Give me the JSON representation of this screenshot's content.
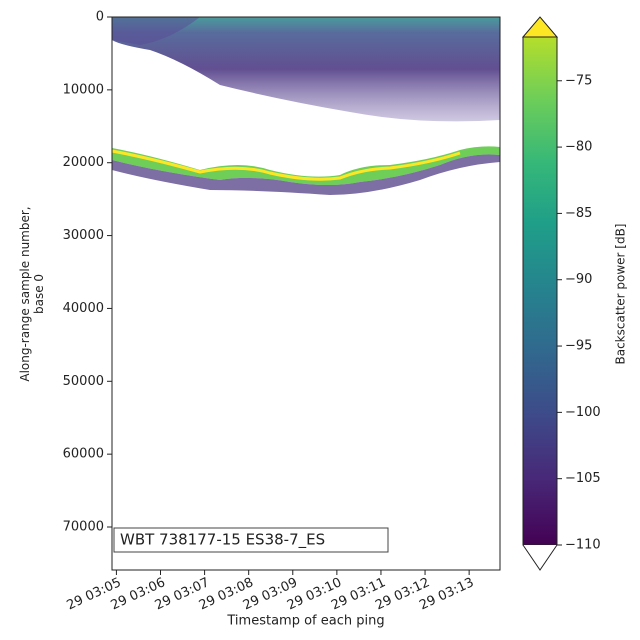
{
  "chart_data": {
    "type": "heatmap",
    "annotation": "WBT 738177-15 ES38-7_ES",
    "xlabel": "Timestamp of each ping",
    "ylabel": "Along-range sample number,\nbase 0",
    "xlim": [
      4.9,
      13.7
    ],
    "xticks": [
      {
        "value": 5,
        "label": "29 03:05"
      },
      {
        "value": 6,
        "label": "29 03:06"
      },
      {
        "value": 7,
        "label": "29 03:07"
      },
      {
        "value": 8,
        "label": "29 03:08"
      },
      {
        "value": 9,
        "label": "29 03:09"
      },
      {
        "value": 10,
        "label": "29 03:10"
      },
      {
        "value": 11,
        "label": "29 03:11"
      },
      {
        "value": 12,
        "label": "29 03:12"
      },
      {
        "value": 13,
        "label": "29 03:13"
      }
    ],
    "ylim": [
      0,
      75900
    ],
    "yticks": [
      0,
      10000,
      20000,
      30000,
      40000,
      50000,
      60000,
      70000
    ],
    "colorbar": {
      "label": "Backscatter power [dB]",
      "colormap": "viridis",
      "lim": [
        -110,
        -71.7
      ],
      "ticks": [
        {
          "value": -75,
          "label": "−75"
        },
        {
          "value": -80,
          "label": "−80"
        },
        {
          "value": -85,
          "label": "−85"
        },
        {
          "value": -90,
          "label": "−90"
        },
        {
          "value": -95,
          "label": "−95"
        },
        {
          "value": -100,
          "label": "−100"
        },
        {
          "value": -105,
          "label": "−105"
        },
        {
          "value": -110,
          "label": "−110"
        }
      ]
    }
  }
}
